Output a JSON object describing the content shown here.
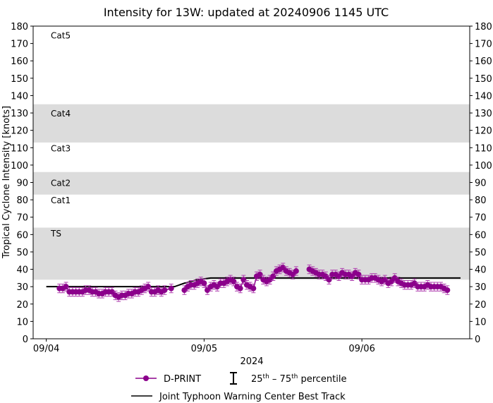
{
  "chart_data": {
    "type": "line",
    "title": "Intensity for 13W: updated at 20240906 1145 UTC",
    "ylabel": "Tropical Cyclone Intensity [knots]",
    "xlabel": "2024",
    "ylim": [
      0,
      180
    ],
    "xlim": [
      "2024-09-03 22:00",
      "2024-09-06 16:24"
    ],
    "yticks": [
      0,
      10,
      20,
      30,
      40,
      50,
      60,
      70,
      80,
      90,
      100,
      110,
      120,
      130,
      140,
      150,
      160,
      170,
      180
    ],
    "xticks": [
      {
        "t": "2024-09-04 00:00",
        "label": "09/04"
      },
      {
        "t": "2024-09-05 00:00",
        "label": "09/05"
      },
      {
        "t": "2024-09-06 00:00",
        "label": "09/06"
      }
    ],
    "bands": [
      {
        "label": "TS",
        "from": 34,
        "to": 64,
        "shaded": true,
        "label_at": 61
      },
      {
        "label": "Cat1",
        "from": 64,
        "to": 83,
        "shaded": false,
        "label_at": 80
      },
      {
        "label": "Cat2",
        "from": 83,
        "to": 96,
        "shaded": true,
        "label_at": 90
      },
      {
        "label": "Cat3",
        "from": 96,
        "to": 113,
        "shaded": false,
        "label_at": 110
      },
      {
        "label": "Cat4",
        "from": 113,
        "to": 135,
        "shaded": true,
        "label_at": 130
      },
      {
        "label": "Cat5",
        "from": 135,
        "to": 180,
        "shaded": false,
        "label_at": 175
      }
    ],
    "band_color": "#dcdcdc",
    "series": [
      {
        "name": "D-PRINT",
        "color": "#8b008b",
        "marker": "circle",
        "spread": "25th-75th percentile",
        "points": [
          [
            "2024-09-04 02:00",
            29
          ],
          [
            "2024-09-04 02:30",
            29
          ],
          [
            "2024-09-04 03:00",
            30
          ],
          [
            "2024-09-04 03:30",
            27
          ],
          [
            "2024-09-04 04:00",
            27
          ],
          [
            "2024-09-04 04:30",
            27
          ],
          [
            "2024-09-04 05:00",
            27
          ],
          [
            "2024-09-04 05:30",
            27
          ],
          [
            "2024-09-04 06:00",
            28
          ],
          [
            "2024-09-04 06:30",
            28
          ],
          [
            "2024-09-04 07:00",
            27
          ],
          [
            "2024-09-04 07:30",
            27
          ],
          [
            "2024-09-04 08:00",
            26
          ],
          [
            "2024-09-04 08:30",
            26
          ],
          [
            "2024-09-04 09:00",
            27
          ],
          [
            "2024-09-04 09:30",
            27
          ],
          [
            "2024-09-04 10:00",
            27
          ],
          [
            "2024-09-04 10:30",
            25
          ],
          [
            "2024-09-04 11:00",
            24
          ],
          [
            "2024-09-04 11:30",
            25
          ],
          [
            "2024-09-04 12:00",
            25
          ],
          [
            "2024-09-04 12:30",
            26
          ],
          [
            "2024-09-04 13:00",
            26
          ],
          [
            "2024-09-04 13:30",
            27
          ],
          [
            "2024-09-04 14:00",
            27
          ],
          [
            "2024-09-04 14:30",
            28
          ],
          [
            "2024-09-04 15:00",
            29
          ],
          [
            "2024-09-04 15:30",
            30
          ],
          [
            "2024-09-04 16:00",
            27
          ],
          [
            "2024-09-04 16:30",
            27
          ],
          [
            "2024-09-04 17:00",
            28
          ],
          [
            "2024-09-04 17:30",
            27
          ],
          [
            "2024-09-04 18:00",
            28
          ],
          [
            "2024-09-04 19:00",
            29
          ],
          [
            "2024-09-04 21:00",
            28
          ],
          [
            "2024-09-04 21:30",
            30
          ],
          [
            "2024-09-04 22:00",
            31
          ],
          [
            "2024-09-04 22:30",
            31
          ],
          [
            "2024-09-04 23:00",
            32
          ],
          [
            "2024-09-04 23:30",
            33
          ],
          [
            "2024-09-05 00:00",
            32
          ],
          [
            "2024-09-05 00:30",
            28
          ],
          [
            "2024-09-05 01:00",
            30
          ],
          [
            "2024-09-05 01:30",
            31
          ],
          [
            "2024-09-05 02:00",
            30
          ],
          [
            "2024-09-05 02:30",
            32
          ],
          [
            "2024-09-05 03:00",
            32
          ],
          [
            "2024-09-05 03:30",
            33
          ],
          [
            "2024-09-05 04:00",
            34
          ],
          [
            "2024-09-05 04:30",
            33
          ],
          [
            "2024-09-05 05:00",
            30
          ],
          [
            "2024-09-05 05:30",
            29
          ],
          [
            "2024-09-05 06:00",
            34
          ],
          [
            "2024-09-05 06:30",
            31
          ],
          [
            "2024-09-05 07:00",
            30
          ],
          [
            "2024-09-05 07:30",
            29
          ],
          [
            "2024-09-05 08:00",
            36
          ],
          [
            "2024-09-05 08:30",
            37
          ],
          [
            "2024-09-05 09:00",
            34
          ],
          [
            "2024-09-05 09:30",
            33
          ],
          [
            "2024-09-05 10:00",
            34
          ],
          [
            "2024-09-05 10:30",
            36
          ],
          [
            "2024-09-05 11:00",
            39
          ],
          [
            "2024-09-05 11:30",
            40
          ],
          [
            "2024-09-05 12:00",
            41
          ],
          [
            "2024-09-05 12:30",
            39
          ],
          [
            "2024-09-05 13:00",
            38
          ],
          [
            "2024-09-05 13:30",
            37
          ],
          [
            "2024-09-05 14:00",
            39
          ],
          [
            "2024-09-05 16:00",
            40
          ],
          [
            "2024-09-05 16:30",
            39
          ],
          [
            "2024-09-05 17:00",
            38
          ],
          [
            "2024-09-05 17:30",
            37
          ],
          [
            "2024-09-05 18:00",
            37
          ],
          [
            "2024-09-05 18:30",
            36
          ],
          [
            "2024-09-05 19:00",
            34
          ],
          [
            "2024-09-05 19:30",
            37
          ],
          [
            "2024-09-05 20:00",
            37
          ],
          [
            "2024-09-05 20:30",
            36
          ],
          [
            "2024-09-05 21:00",
            38
          ],
          [
            "2024-09-05 21:30",
            37
          ],
          [
            "2024-09-05 22:00",
            37
          ],
          [
            "2024-09-05 22:30",
            36
          ],
          [
            "2024-09-05 23:00",
            38
          ],
          [
            "2024-09-05 23:30",
            37
          ],
          [
            "2024-09-06 00:00",
            34
          ],
          [
            "2024-09-06 00:30",
            34
          ],
          [
            "2024-09-06 01:00",
            34
          ],
          [
            "2024-09-06 01:30",
            35
          ],
          [
            "2024-09-06 02:00",
            35
          ],
          [
            "2024-09-06 02:30",
            34
          ],
          [
            "2024-09-06 03:00",
            33
          ],
          [
            "2024-09-06 03:30",
            34
          ],
          [
            "2024-09-06 04:00",
            32
          ],
          [
            "2024-09-06 04:30",
            33
          ],
          [
            "2024-09-06 05:00",
            35
          ],
          [
            "2024-09-06 05:30",
            33
          ],
          [
            "2024-09-06 06:00",
            32
          ],
          [
            "2024-09-06 06:30",
            31
          ],
          [
            "2024-09-06 07:00",
            31
          ],
          [
            "2024-09-06 07:30",
            31
          ],
          [
            "2024-09-06 08:00",
            32
          ],
          [
            "2024-09-06 08:30",
            30
          ],
          [
            "2024-09-06 09:00",
            30
          ],
          [
            "2024-09-06 09:30",
            30
          ],
          [
            "2024-09-06 10:00",
            31
          ],
          [
            "2024-09-06 10:30",
            30
          ],
          [
            "2024-09-06 11:00",
            30
          ],
          [
            "2024-09-06 11:30",
            30
          ],
          [
            "2024-09-06 12:00",
            30
          ],
          [
            "2024-09-06 12:30",
            29
          ],
          [
            "2024-09-06 13:00",
            28
          ]
        ]
      },
      {
        "name": "Joint Typhoon Warning Center Best Track",
        "color": "#000000",
        "points": [
          [
            "2024-09-04 00:00",
            30
          ],
          [
            "2024-09-04 19:30",
            30
          ],
          [
            "2024-09-04 21:00",
            32
          ],
          [
            "2024-09-04 23:00",
            34
          ],
          [
            "2024-09-05 01:00",
            35
          ],
          [
            "2024-09-06 15:00",
            35
          ]
        ]
      }
    ],
    "legend": {
      "placement": "bottom",
      "dprint": "D-PRINT",
      "percentile_prefix": "25",
      "percentile_mid": " – 75",
      "percentile_suffix": " percentile",
      "sup": "th",
      "best_track": "Joint Typhoon Warning Center Best Track"
    }
  }
}
